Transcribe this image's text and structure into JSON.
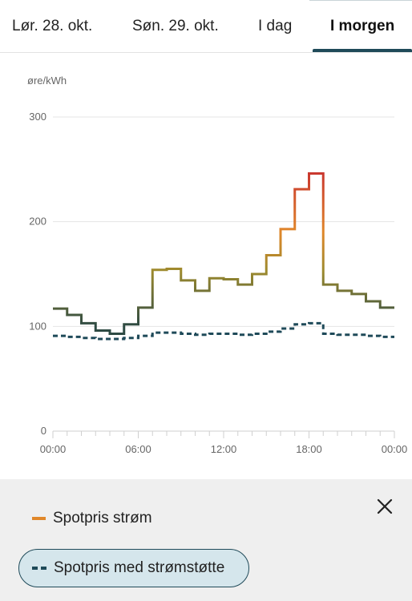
{
  "tabs": [
    {
      "label": "Lør. 28. okt."
    },
    {
      "label": "Søn. 29. okt."
    },
    {
      "label": "I dag"
    },
    {
      "label": "I morgen",
      "active": true
    }
  ],
  "chart_data": {
    "type": "line",
    "ylabel": "øre/kWh",
    "ylim": [
      0,
      300
    ],
    "yticks": [
      0,
      100,
      200,
      300
    ],
    "xlim": [
      0,
      24
    ],
    "xtick_labels": [
      "00:00",
      "06:00",
      "12:00",
      "18:00",
      "00:00"
    ],
    "grid": true,
    "step": true,
    "hours": [
      0,
      1,
      2,
      3,
      4,
      5,
      6,
      7,
      8,
      9,
      10,
      11,
      12,
      13,
      14,
      15,
      16,
      17,
      18,
      19,
      20,
      21,
      22,
      23
    ],
    "series": [
      {
        "name": "Spotpris strøm",
        "style": "solid-gradient",
        "values": [
          117,
          111,
          103,
          96,
          93,
          102,
          118,
          154,
          155,
          144,
          134,
          146,
          145,
          140,
          150,
          168,
          193,
          231,
          246,
          140,
          134,
          131,
          124,
          118
        ]
      },
      {
        "name": "Spotpris med strømstøtte",
        "style": "dashed",
        "color": "#1f4a59",
        "values": [
          91,
          90,
          89,
          88,
          88,
          89,
          91,
          94,
          94,
          93,
          92,
          93,
          93,
          92,
          93,
          95,
          98,
          102,
          103,
          93,
          92,
          92,
          91,
          90
        ]
      }
    ]
  },
  "colors": {
    "low": "#2d4a43",
    "mid": "#9c8a2e",
    "high": "#e0872a",
    "peak": "#c8322f",
    "accent": "#1f4a59"
  },
  "legend": {
    "close_icon": "close-icon",
    "items": [
      {
        "label": "Spotpris strøm",
        "swatch_color": "#e0872a"
      },
      {
        "label": "Spotpris med strømstøtte",
        "swatch_color": "#1f4a59",
        "selected": true
      }
    ]
  }
}
